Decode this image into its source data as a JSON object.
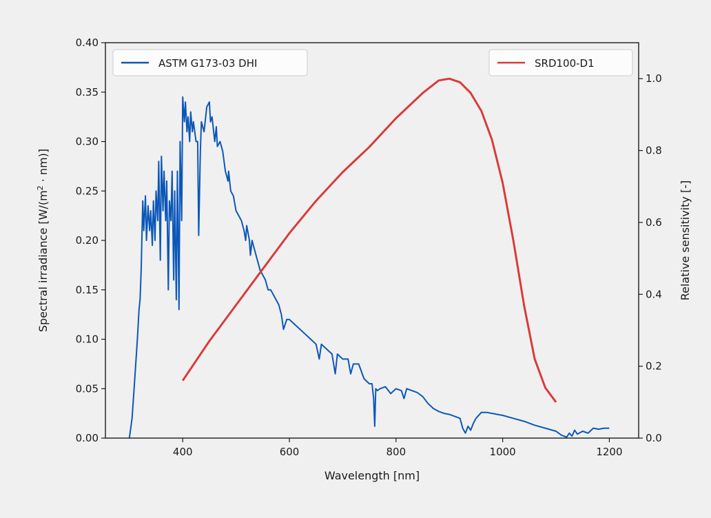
{
  "chart_data": {
    "type": "line",
    "title": "",
    "xlabel": "Wavelength [nm]",
    "ylabel": "Spectral irradiance [W/(m",
    "ylabel_superscript": "2",
    "ylabel_suffix": " · nm)]",
    "y2label": "Relative sensitivity [-]",
    "xlim": [
      255,
      1255
    ],
    "ylim": [
      0,
      0.4
    ],
    "y2lim": [
      0,
      1.1
    ],
    "grid": false,
    "xticks": [
      400,
      600,
      800,
      1000,
      1200
    ],
    "xtick_labels": [
      "400",
      "600",
      "800",
      "1000",
      "1200"
    ],
    "yticks": [
      0,
      0.05,
      0.1,
      0.15,
      0.2,
      0.25,
      0.3,
      0.35,
      0.4
    ],
    "ytick_labels": [
      "0.00",
      "0.05",
      "0.10",
      "0.15",
      "0.20",
      "0.25",
      "0.30",
      "0.35",
      "0.40"
    ],
    "y2ticks": [
      0,
      0.2,
      0.4,
      0.6,
      0.8,
      1.0
    ],
    "y2tick_labels": [
      "0.0",
      "0.2",
      "0.4",
      "0.6",
      "0.8",
      "1.0"
    ],
    "legend_left": {
      "placement": "upper-left",
      "entries": [
        "ASTM G173-03 DHI"
      ]
    },
    "legend_right": {
      "placement": "upper-right",
      "entries": [
        "SRD100-D1"
      ]
    },
    "series": [
      {
        "name": "ASTM G173-03 DHI",
        "axis": "left",
        "color": "#0b57b8",
        "x": [
          300,
          305,
          310,
          315,
          318,
          320,
          322,
          325,
          327,
          330,
          332,
          335,
          338,
          340,
          343,
          345,
          348,
          350,
          353,
          355,
          358,
          360,
          363,
          365,
          368,
          370,
          373,
          375,
          378,
          380,
          383,
          385,
          388,
          390,
          393,
          395,
          398,
          400,
          403,
          405,
          408,
          410,
          413,
          415,
          418,
          420,
          425,
          428,
          430,
          433,
          435,
          440,
          445,
          450,
          452,
          455,
          460,
          463,
          465,
          470,
          475,
          480,
          485,
          486,
          490,
          495,
          500,
          505,
          510,
          515,
          518,
          520,
          525,
          527,
          530,
          535,
          540,
          545,
          550,
          555,
          560,
          565,
          570,
          575,
          580,
          585,
          589,
          595,
          600,
          610,
          620,
          630,
          640,
          650,
          656,
          660,
          670,
          680,
          686,
          690,
          700,
          710,
          715,
          720,
          730,
          740,
          750,
          755,
          758,
          760,
          762,
          765,
          770,
          780,
          790,
          800,
          810,
          815,
          820,
          830,
          840,
          850,
          860,
          870,
          880,
          890,
          900,
          910,
          920,
          925,
          930,
          935,
          940,
          945,
          950,
          960,
          970,
          980,
          1000,
          1020,
          1040,
          1060,
          1080,
          1100,
          1110,
          1120,
          1125,
          1130,
          1135,
          1140,
          1150,
          1160,
          1170,
          1180,
          1190,
          1200
        ],
        "values": [
          0.0,
          0.02,
          0.06,
          0.1,
          0.13,
          0.14,
          0.17,
          0.24,
          0.21,
          0.245,
          0.2,
          0.235,
          0.21,
          0.23,
          0.195,
          0.24,
          0.2,
          0.25,
          0.22,
          0.28,
          0.18,
          0.285,
          0.23,
          0.27,
          0.22,
          0.26,
          0.15,
          0.24,
          0.22,
          0.27,
          0.16,
          0.25,
          0.14,
          0.27,
          0.13,
          0.3,
          0.22,
          0.345,
          0.32,
          0.34,
          0.31,
          0.325,
          0.3,
          0.33,
          0.31,
          0.32,
          0.3,
          0.3,
          0.205,
          0.29,
          0.32,
          0.31,
          0.335,
          0.34,
          0.32,
          0.325,
          0.3,
          0.315,
          0.295,
          0.3,
          0.29,
          0.27,
          0.26,
          0.27,
          0.25,
          0.245,
          0.23,
          0.225,
          0.22,
          0.21,
          0.2,
          0.215,
          0.2,
          0.185,
          0.2,
          0.19,
          0.18,
          0.17,
          0.165,
          0.16,
          0.15,
          0.15,
          0.145,
          0.14,
          0.135,
          0.125,
          0.11,
          0.12,
          0.12,
          0.115,
          0.11,
          0.105,
          0.1,
          0.095,
          0.08,
          0.095,
          0.09,
          0.085,
          0.065,
          0.085,
          0.08,
          0.08,
          0.065,
          0.075,
          0.075,
          0.06,
          0.055,
          0.055,
          0.04,
          0.012,
          0.05,
          0.048,
          0.05,
          0.052,
          0.045,
          0.05,
          0.048,
          0.04,
          0.05,
          0.048,
          0.046,
          0.042,
          0.035,
          0.03,
          0.027,
          0.025,
          0.024,
          0.022,
          0.02,
          0.01,
          0.005,
          0.012,
          0.008,
          0.015,
          0.02,
          0.026,
          0.026,
          0.025,
          0.023,
          0.02,
          0.017,
          0.013,
          0.01,
          0.007,
          0.003,
          0.001,
          0.005,
          0.002,
          0.008,
          0.004,
          0.007,
          0.005,
          0.01,
          0.009,
          0.01,
          0.01
        ]
      },
      {
        "name": "SRD100-D1",
        "axis": "right",
        "color": "#d93a3a",
        "x": [
          400,
          450,
          500,
          550,
          600,
          650,
          700,
          750,
          800,
          850,
          880,
          900,
          920,
          940,
          960,
          980,
          1000,
          1020,
          1040,
          1060,
          1080,
          1100
        ],
        "values": [
          0.16,
          0.27,
          0.37,
          0.47,
          0.57,
          0.66,
          0.74,
          0.81,
          0.89,
          0.96,
          0.995,
          1.0,
          0.99,
          0.96,
          0.91,
          0.83,
          0.71,
          0.55,
          0.37,
          0.22,
          0.14,
          0.1
        ]
      }
    ]
  }
}
